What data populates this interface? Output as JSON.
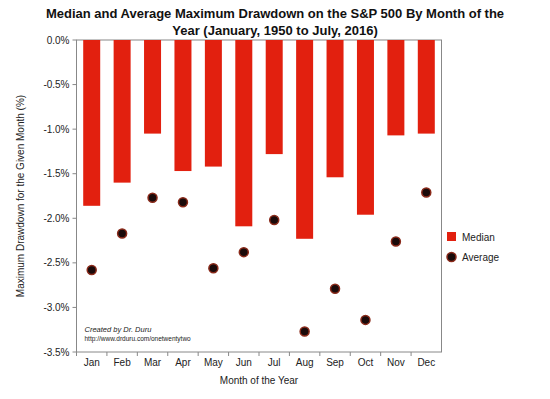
{
  "chart_data": {
    "type": "bar",
    "title": "Median and Average Maximum Drawdown on the S&P 500 By Month of the Year (January, 1950 to July, 2016)",
    "x_label": "Month of the Year",
    "y_label": "Maximum Drawdown for the Given Month (%)",
    "annotations": [
      "Created by Dr. Duru",
      "http://www.drduru.com/onetwentytwo"
    ],
    "categories": [
      "Jan",
      "Feb",
      "Mar",
      "Apr",
      "May",
      "Jun",
      "Jul",
      "Aug",
      "Sep",
      "Oct",
      "Nov",
      "Dec"
    ],
    "series": [
      {
        "name": "Median",
        "type": "bar",
        "color": "#e2200f",
        "values": [
          -1.86,
          -1.6,
          -1.05,
          -1.47,
          -1.42,
          -2.09,
          -1.28,
          -2.23,
          -1.54,
          -1.96,
          -1.07,
          -1.05
        ]
      },
      {
        "name": "Average",
        "type": "scatter",
        "color": "#1a0a0a",
        "marker": "circle",
        "values": [
          -2.58,
          -2.17,
          -1.77,
          -1.82,
          -2.56,
          -2.38,
          -2.02,
          -3.27,
          -2.79,
          -3.14,
          -2.26,
          -1.71
        ]
      }
    ],
    "ylim": [
      -3.5,
      0
    ],
    "yticks": [
      {
        "value": 0,
        "label": "0.0%"
      },
      {
        "value": -0.5,
        "label": "-0.5%"
      },
      {
        "value": -1,
        "label": "-1.0%"
      },
      {
        "value": -1.5,
        "label": "-1.5%"
      },
      {
        "value": -2,
        "label": "-2.0%"
      },
      {
        "value": -2.5,
        "label": "-2.5%"
      },
      {
        "value": -3,
        "label": "-3.0%"
      },
      {
        "value": -3.5,
        "label": "-3.5%"
      }
    ],
    "grid": false,
    "legend": "right"
  }
}
